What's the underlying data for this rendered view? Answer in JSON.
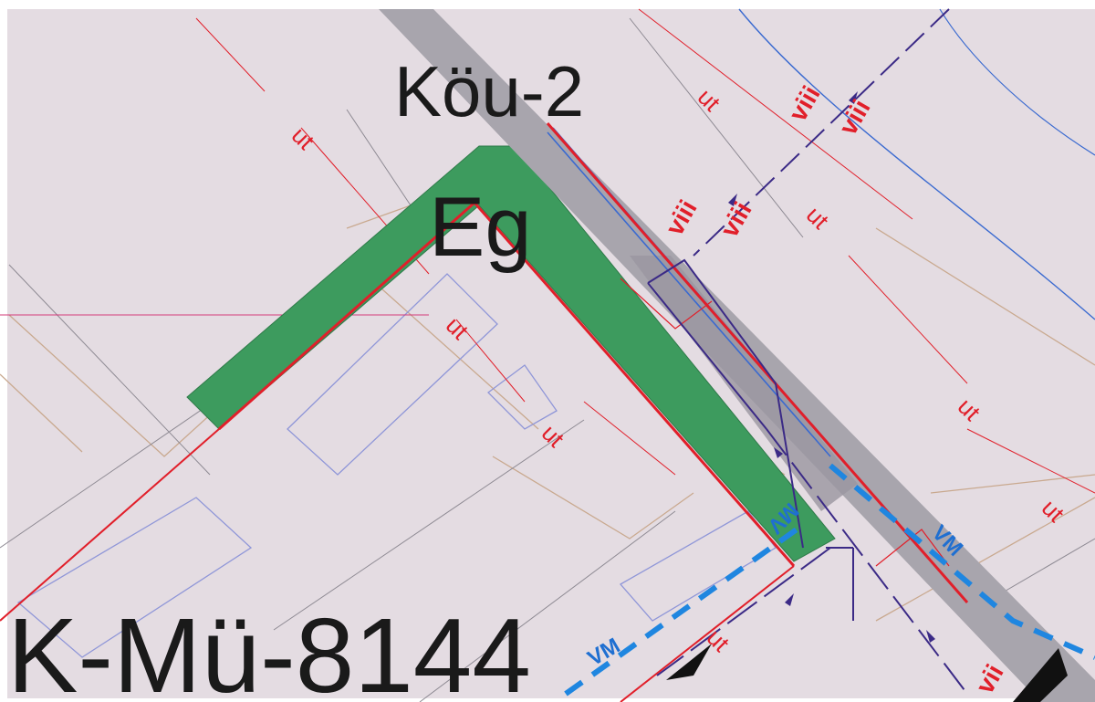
{
  "labels": {
    "zone_code": "Köu-2",
    "zone_sub": "Eg",
    "parcel_code": "K-Mü-8144"
  },
  "symbols": {
    "ut": "ut",
    "viii": "viii",
    "vii": "vii",
    "vm": "VM"
  },
  "colors": {
    "background": "#e4dce2",
    "green_strip": "#3d9b5e",
    "road": "#a8a5ad",
    "boundary_red": "#e11f2a",
    "blue_dashed": "#1f86e0",
    "purple_line": "#3b2a86",
    "parcel_blue": "#8f96d8",
    "parcel_tan": "#c9a98f"
  }
}
